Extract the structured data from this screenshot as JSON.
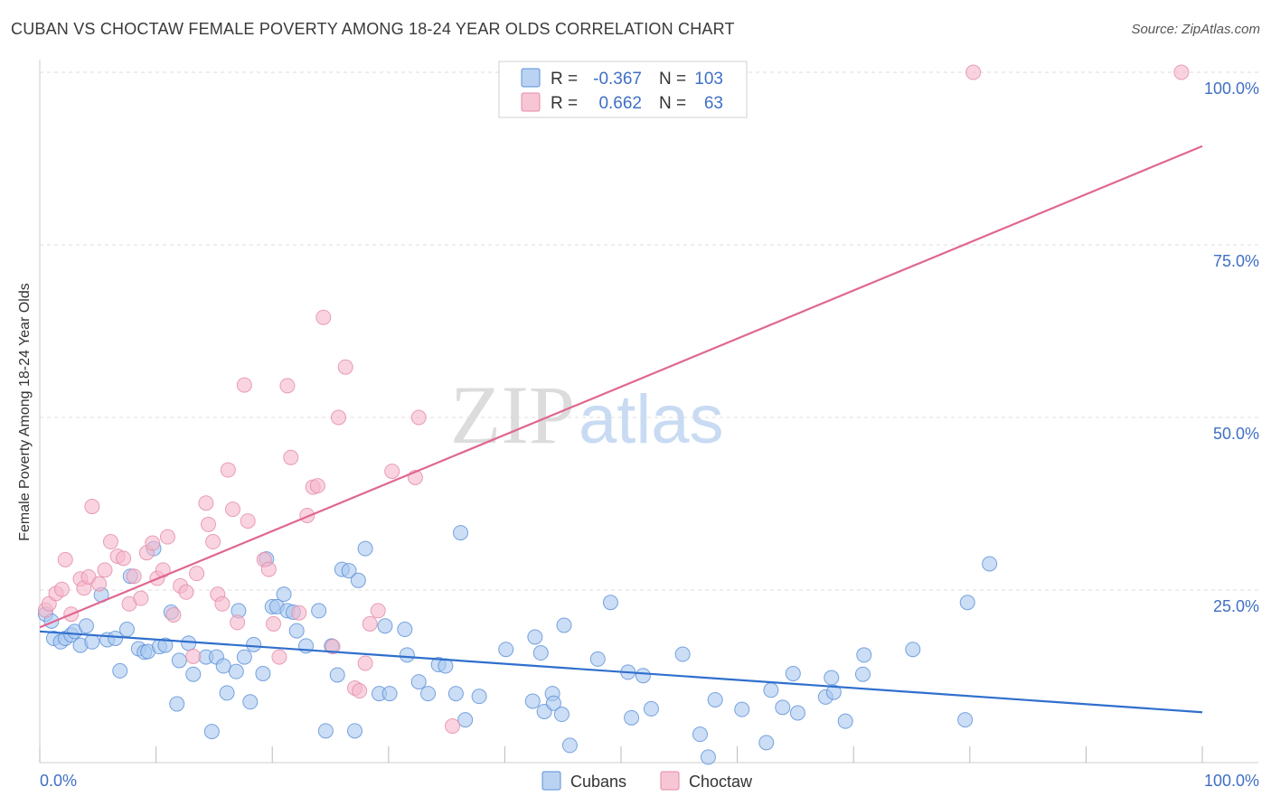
{
  "title": "CUBAN VS CHOCTAW FEMALE POVERTY AMONG 18-24 YEAR OLDS CORRELATION CHART",
  "source": "Source: ZipAtlas.com",
  "watermark": {
    "part1": "ZIP",
    "part2": "atlas"
  },
  "colors": {
    "cubans_fill": "#a9c8f0",
    "cubans_stroke": "#5b8fd6",
    "cubans_line": "#2f6fcd",
    "choctaw_fill": "#f5b8cb",
    "choctaw_stroke": "#e48aa6",
    "choctaw_line": "#e0678f",
    "tick_label": "#3f6fc4"
  },
  "legend_top": [
    {
      "r_label": "R =",
      "r_value": "-0.367",
      "n_label": "N =",
      "n_value": "103"
    },
    {
      "r_label": "R =",
      "r_value": "0.662",
      "n_label": "N =",
      "n_value": "63"
    }
  ],
  "chart_data": {
    "type": "scatter",
    "xlabel": "",
    "ylabel": "Female Poverty Among 18-24 Year Olds",
    "xlim": [
      0,
      100
    ],
    "ylim": [
      0,
      100
    ],
    "x_tick_labels": [
      "0.0%",
      "100.0%"
    ],
    "y_ticks": [
      25,
      50,
      75,
      100
    ],
    "y_tick_labels": [
      "25.0%",
      "50.0%",
      "75.0%",
      "100.0%"
    ],
    "grid": true,
    "legend_position": "bottom-center",
    "series": [
      {
        "name": "Cubans",
        "trend": {
          "x": [
            0,
            100
          ],
          "y": [
            19.0,
            7.3
          ]
        },
        "points": [
          [
            0.5,
            21.5
          ],
          [
            1,
            20.5
          ],
          [
            1.2,
            18
          ],
          [
            1.8,
            17.5
          ],
          [
            2.2,
            18
          ],
          [
            2.7,
            18.5
          ],
          [
            3,
            19
          ],
          [
            3.5,
            17
          ],
          [
            4,
            19.8
          ],
          [
            4.5,
            17.5
          ],
          [
            5.3,
            24.3
          ],
          [
            5.8,
            17.8
          ],
          [
            6.5,
            18
          ],
          [
            6.9,
            13.3
          ],
          [
            7.5,
            19.3
          ],
          [
            7.8,
            27
          ],
          [
            8.5,
            16.5
          ],
          [
            9,
            16
          ],
          [
            9.3,
            16.1
          ],
          [
            9.8,
            31
          ],
          [
            10.3,
            16.8
          ],
          [
            10.8,
            17
          ],
          [
            11.3,
            21.8
          ],
          [
            11.8,
            8.5
          ],
          [
            12,
            14.8
          ],
          [
            12.8,
            17.3
          ],
          [
            13.2,
            12.8
          ],
          [
            14.3,
            15.3
          ],
          [
            14.8,
            4.5
          ],
          [
            15.2,
            15.3
          ],
          [
            15.8,
            14
          ],
          [
            16.1,
            10.1
          ],
          [
            16.9,
            13.2
          ],
          [
            17.1,
            22
          ],
          [
            17.6,
            15.3
          ],
          [
            18.1,
            8.8
          ],
          [
            18.4,
            17.1
          ],
          [
            19.2,
            12.9
          ],
          [
            19.5,
            29.5
          ],
          [
            20,
            22.6
          ],
          [
            20.4,
            22.6
          ],
          [
            21,
            24.4
          ],
          [
            21.3,
            22
          ],
          [
            21.8,
            21.8
          ],
          [
            22.1,
            19.1
          ],
          [
            22.9,
            16.9
          ],
          [
            24,
            22
          ],
          [
            24.6,
            4.6
          ],
          [
            25.1,
            16.9
          ],
          [
            25.6,
            12.7
          ],
          [
            26,
            28
          ],
          [
            26.6,
            27.8
          ],
          [
            27.1,
            4.6
          ],
          [
            28,
            31
          ],
          [
            27.4,
            26.4
          ],
          [
            29.2,
            10
          ],
          [
            29.7,
            19.8
          ],
          [
            30.1,
            10
          ],
          [
            31.6,
            15.6
          ],
          [
            31.4,
            19.3
          ],
          [
            32.6,
            11.7
          ],
          [
            33.4,
            10
          ],
          [
            34.3,
            14.2
          ],
          [
            34.9,
            14
          ],
          [
            35.8,
            10
          ],
          [
            36.2,
            33.3
          ],
          [
            36.6,
            6.2
          ],
          [
            37.8,
            9.6
          ],
          [
            40.1,
            16.4
          ],
          [
            42.4,
            8.9
          ],
          [
            42.6,
            18.2
          ],
          [
            43.1,
            15.9
          ],
          [
            43.4,
            7.4
          ],
          [
            44.1,
            10
          ],
          [
            44.2,
            8.6
          ],
          [
            44.9,
            7
          ],
          [
            45.1,
            19.9
          ],
          [
            45.6,
            2.5
          ],
          [
            48,
            15
          ],
          [
            49.1,
            23.2
          ],
          [
            50.6,
            13.1
          ],
          [
            50.9,
            6.5
          ],
          [
            51.9,
            12.6
          ],
          [
            52.6,
            7.8
          ],
          [
            55.3,
            15.7
          ],
          [
            56.8,
            4.1
          ],
          [
            58.1,
            9.1
          ],
          [
            57.5,
            0.8
          ],
          [
            60.4,
            7.7
          ],
          [
            62.5,
            2.9
          ],
          [
            62.9,
            10.5
          ],
          [
            63.9,
            8
          ],
          [
            64.8,
            12.9
          ],
          [
            65.2,
            7.2
          ],
          [
            67.6,
            9.5
          ],
          [
            68.1,
            12.3
          ],
          [
            68.3,
            10.2
          ],
          [
            69.3,
            6
          ],
          [
            70.9,
            15.6
          ],
          [
            70.8,
            12.8
          ],
          [
            75.1,
            16.4
          ],
          [
            79.6,
            6.2
          ],
          [
            79.8,
            23.2
          ],
          [
            81.7,
            28.8
          ]
        ]
      },
      {
        "name": "Choctaw",
        "trend": {
          "x": [
            0,
            100
          ],
          "y": [
            19.6,
            89.3
          ]
        },
        "points": [
          [
            0.5,
            22.1
          ],
          [
            0.8,
            23
          ],
          [
            1.4,
            24.5
          ],
          [
            1.9,
            25.1
          ],
          [
            2.2,
            29.4
          ],
          [
            2.7,
            21.5
          ],
          [
            3.5,
            26.6
          ],
          [
            3.8,
            25.3
          ],
          [
            4.2,
            26.9
          ],
          [
            4.5,
            37.1
          ],
          [
            5.1,
            25.9
          ],
          [
            5.6,
            27.9
          ],
          [
            6.1,
            32
          ],
          [
            6.7,
            29.9
          ],
          [
            7.2,
            29.6
          ],
          [
            7.7,
            23
          ],
          [
            8.1,
            27
          ],
          [
            8.7,
            23.8
          ],
          [
            9.2,
            30.4
          ],
          [
            9.7,
            31.8
          ],
          [
            10.1,
            26.7
          ],
          [
            10.6,
            27.9
          ],
          [
            11,
            32.7
          ],
          [
            11.5,
            21.4
          ],
          [
            12.1,
            25.6
          ],
          [
            12.6,
            24.7
          ],
          [
            13.2,
            15.4
          ],
          [
            13.5,
            27.4
          ],
          [
            14.3,
            37.6
          ],
          [
            14.5,
            34.5
          ],
          [
            14.9,
            32
          ],
          [
            15.3,
            24.4
          ],
          [
            15.7,
            23
          ],
          [
            16.2,
            42.4
          ],
          [
            16.6,
            36.7
          ],
          [
            17,
            20.3
          ],
          [
            17.9,
            35
          ],
          [
            17.6,
            54.7
          ],
          [
            19.3,
            29.4
          ],
          [
            19.7,
            28
          ],
          [
            20.1,
            20.1
          ],
          [
            20.6,
            15.3
          ],
          [
            21.3,
            54.6
          ],
          [
            21.6,
            44.2
          ],
          [
            22.3,
            21.7
          ],
          [
            23,
            35.8
          ],
          [
            23.5,
            39.9
          ],
          [
            23.9,
            40.1
          ],
          [
            24.4,
            64.5
          ],
          [
            25.2,
            16.8
          ],
          [
            25.7,
            50
          ],
          [
            26.3,
            57.3
          ],
          [
            27.1,
            10.8
          ],
          [
            27.5,
            10.4
          ],
          [
            28,
            14.4
          ],
          [
            28.4,
            20.1
          ],
          [
            29.1,
            22
          ],
          [
            30.3,
            42.2
          ],
          [
            32.3,
            41.3
          ],
          [
            32.6,
            50
          ],
          [
            35.5,
            5.3
          ],
          [
            80.3,
            100
          ],
          [
            98.2,
            100
          ]
        ]
      }
    ]
  }
}
